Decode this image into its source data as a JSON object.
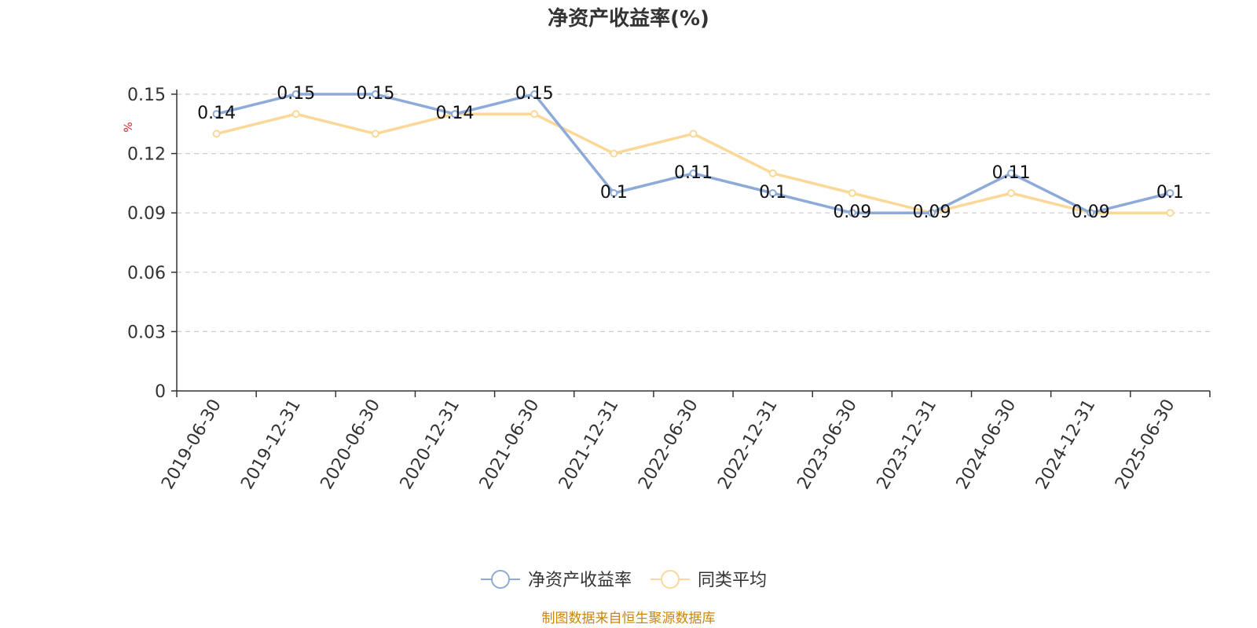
{
  "chart_data": {
    "type": "line",
    "title": "净资产收益率(%)",
    "ylabel": "%",
    "categories": [
      "2019-06-30",
      "2019-12-31",
      "2020-06-30",
      "2020-12-31",
      "2021-06-30",
      "2021-12-31",
      "2022-06-30",
      "2022-12-31",
      "2023-06-30",
      "2023-12-31",
      "2024-06-30",
      "2024-12-31",
      "2025-06-30"
    ],
    "series": [
      {
        "name": "净资产收益率",
        "color": "#8eaad8",
        "show_labels": true,
        "values": [
          0.14,
          0.15,
          0.15,
          0.14,
          0.15,
          0.1,
          0.11,
          0.1,
          0.09,
          0.09,
          0.11,
          0.09,
          0.1
        ]
      },
      {
        "name": "同类平均",
        "color": "#fbd898",
        "show_labels": false,
        "values": [
          0.13,
          0.14,
          0.13,
          0.14,
          0.14,
          0.12,
          0.13,
          0.11,
          0.1,
          0.09,
          0.1,
          0.09,
          0.09
        ]
      }
    ],
    "yticks": [
      "0",
      "0.03",
      "0.06",
      "0.09",
      "0.12",
      "0.15"
    ],
    "ylim": [
      0,
      0.15
    ],
    "grid": true,
    "legend_position": "bottom-center"
  },
  "source_note": "制图数据来自恒生聚源数据库"
}
